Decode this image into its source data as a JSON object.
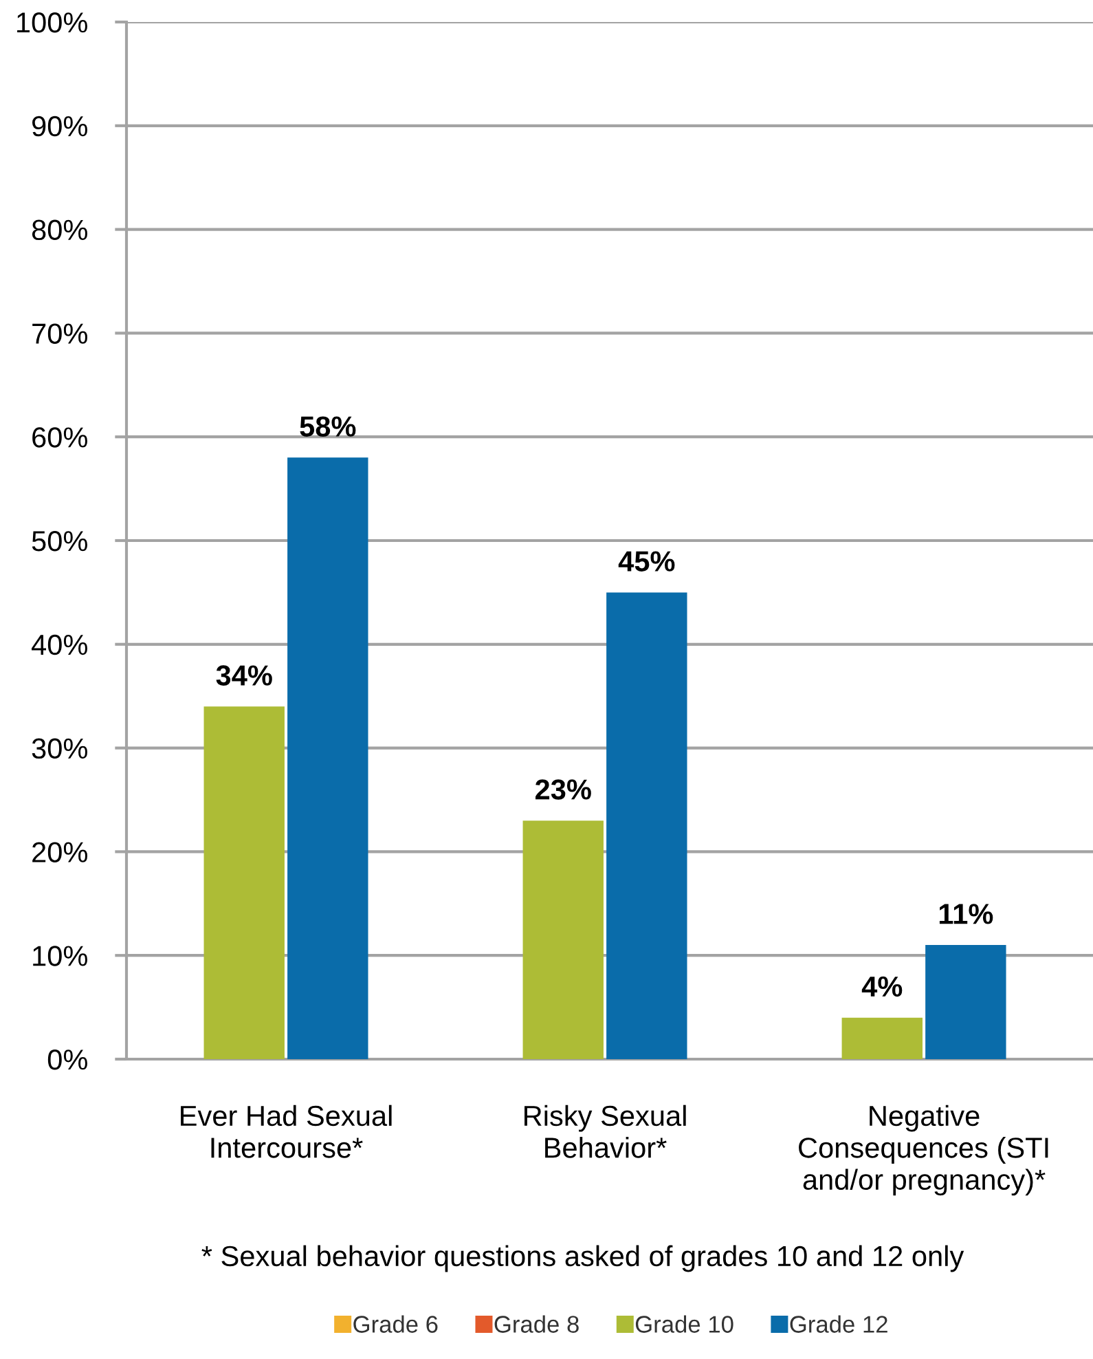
{
  "chart_data": {
    "type": "bar",
    "categories": [
      "Ever Had Sexual\nIntercourse*",
      "Risky Sexual\nBehavior*",
      "Negative\nConsequences (STI\nand/or pregnancy)*"
    ],
    "series": [
      {
        "name": "Grade 6",
        "color": "#f2b12e",
        "values": [
          null,
          null,
          null
        ]
      },
      {
        "name": "Grade 8",
        "color": "#e35a2b",
        "values": [
          null,
          null,
          null
        ]
      },
      {
        "name": "Grade 10",
        "color": "#adbc36",
        "values": [
          34,
          23,
          4
        ],
        "value_labels": [
          "34%",
          "23%",
          "4%"
        ]
      },
      {
        "name": "Grade 12",
        "color": "#0a6caa",
        "values": [
          58,
          45,
          11
        ],
        "value_labels": [
          "58%",
          "45%",
          "11%"
        ]
      }
    ],
    "ylim": [
      0,
      100
    ],
    "yticks": [
      {
        "value": 0,
        "label": "0%"
      },
      {
        "value": 10,
        "label": "10%"
      },
      {
        "value": 20,
        "label": "20%"
      },
      {
        "value": 30,
        "label": "30%"
      },
      {
        "value": 40,
        "label": "40%"
      },
      {
        "value": 50,
        "label": "50%"
      },
      {
        "value": 60,
        "label": "60%"
      },
      {
        "value": 70,
        "label": "70%"
      },
      {
        "value": 80,
        "label": "80%"
      },
      {
        "value": 90,
        "label": "90%"
      },
      {
        "value": 100,
        "label": "100%"
      }
    ],
    "grid": "y",
    "legend": "bottom",
    "annotations": [
      "* Sexual behavior questions asked of grades 10 and 12 only"
    ]
  }
}
